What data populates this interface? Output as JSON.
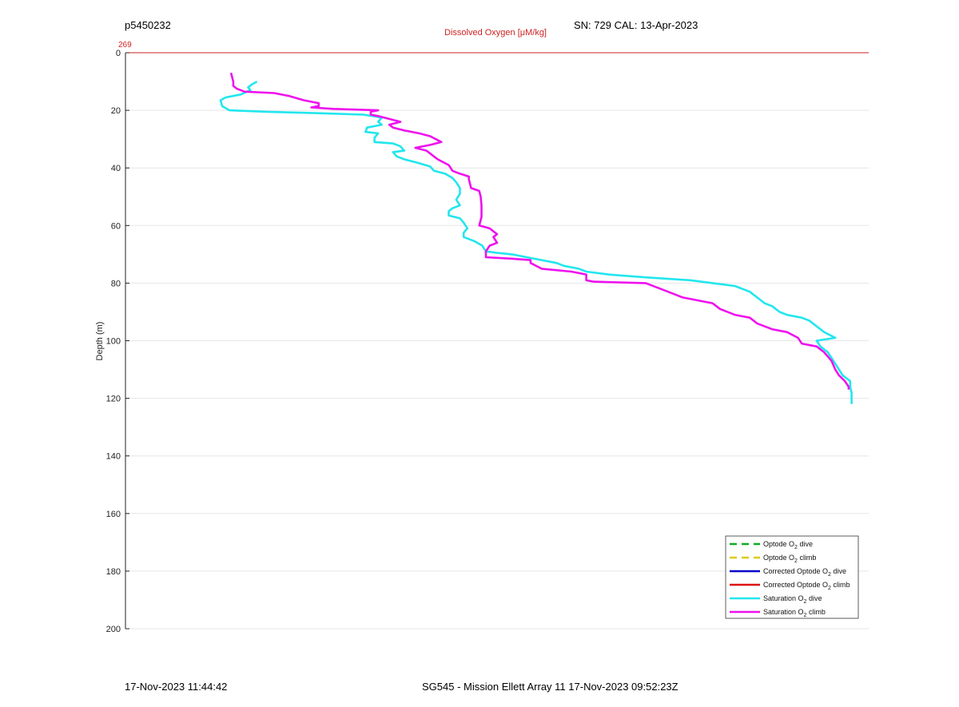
{
  "header": {
    "dive_id": "p5450232",
    "sensor_info": "SN: 729  CAL: 13-Apr-2023"
  },
  "footer": {
    "timestamp": "17-Nov-2023 11:44:42",
    "mission": "SG545 - Mission Ellett Array 11 17-Nov-2023 09:52:23Z"
  },
  "chart_data": {
    "type": "line",
    "title": "",
    "top_axis_label": "Dissolved Oxygen [μM/kg]",
    "top_axis_tick": "269",
    "ylabel": "Depth (m)",
    "ylim": [
      0,
      200
    ],
    "y_reversed": true,
    "yticks": [
      0,
      20,
      40,
      60,
      80,
      100,
      120,
      140,
      160,
      180,
      200
    ],
    "x_tick_value": 269,
    "colors": {
      "top_axis": "#cc2222",
      "grid": "#e6e6e6"
    },
    "legend": {
      "placement": "bottom-right",
      "entries": [
        {
          "label": "Optode O",
          "sub": "2",
          "tail": " dive",
          "color": "#11aa22",
          "dashed": true
        },
        {
          "label": "Optode O",
          "sub": "2",
          "tail": " climb",
          "color": "#ddcc00",
          "dashed": true
        },
        {
          "label": "Corrected Optode O",
          "sub": "2",
          "tail": " dive",
          "color": "#0000cc",
          "dashed": false
        },
        {
          "label": "Corrected Optode O",
          "sub": "2",
          "tail": " climb",
          "color": "#dd1111",
          "dashed": false
        },
        {
          "label": "Saturation O",
          "sub": "2",
          "tail": " dive",
          "color": "#22e6ee",
          "dashed": false
        },
        {
          "label": "Saturation O",
          "sub": "2",
          "tail": " climb",
          "color": "#ee11ee",
          "dashed": false
        }
      ]
    },
    "series": [
      {
        "name": "Saturation O2 dive",
        "color": "#22e6ee",
        "points": [
          [
            0.177,
            10
          ],
          [
            0.17,
            11
          ],
          [
            0.165,
            12
          ],
          [
            0.168,
            13
          ],
          [
            0.155,
            14.5
          ],
          [
            0.135,
            15.5
          ],
          [
            0.128,
            16.5
          ],
          [
            0.13,
            18.5
          ],
          [
            0.14,
            20
          ],
          [
            0.19,
            20.5
          ],
          [
            0.26,
            21
          ],
          [
            0.32,
            21.5
          ],
          [
            0.345,
            22.5
          ],
          [
            0.34,
            24
          ],
          [
            0.345,
            25
          ],
          [
            0.325,
            26
          ],
          [
            0.323,
            27.5
          ],
          [
            0.34,
            28
          ],
          [
            0.335,
            29.5
          ],
          [
            0.335,
            31
          ],
          [
            0.36,
            31.5
          ],
          [
            0.37,
            32.5
          ],
          [
            0.375,
            34
          ],
          [
            0.36,
            34.5
          ],
          [
            0.365,
            36
          ],
          [
            0.375,
            37
          ],
          [
            0.39,
            38
          ],
          [
            0.41,
            39.5
          ],
          [
            0.415,
            41
          ],
          [
            0.43,
            42
          ],
          [
            0.44,
            43.5
          ],
          [
            0.445,
            45
          ],
          [
            0.45,
            47
          ],
          [
            0.45,
            49
          ],
          [
            0.445,
            51
          ],
          [
            0.45,
            53
          ],
          [
            0.44,
            54
          ],
          [
            0.435,
            55
          ],
          [
            0.435,
            56.5
          ],
          [
            0.45,
            57.5
          ],
          [
            0.455,
            59
          ],
          [
            0.46,
            61
          ],
          [
            0.455,
            62.5
          ],
          [
            0.455,
            64
          ],
          [
            0.47,
            65.5
          ],
          [
            0.48,
            67
          ],
          [
            0.485,
            69
          ],
          [
            0.5,
            69.5
          ],
          [
            0.52,
            70
          ],
          [
            0.54,
            71
          ],
          [
            0.56,
            72
          ],
          [
            0.58,
            73
          ],
          [
            0.59,
            74
          ],
          [
            0.61,
            75
          ],
          [
            0.62,
            76
          ],
          [
            0.65,
            77
          ],
          [
            0.7,
            78
          ],
          [
            0.76,
            79
          ],
          [
            0.79,
            80
          ],
          [
            0.82,
            81
          ],
          [
            0.84,
            83
          ],
          [
            0.85,
            85
          ],
          [
            0.86,
            87
          ],
          [
            0.87,
            88
          ],
          [
            0.88,
            90
          ],
          [
            0.89,
            91
          ],
          [
            0.91,
            92
          ],
          [
            0.92,
            93
          ],
          [
            0.93,
            95
          ],
          [
            0.94,
            97
          ],
          [
            0.955,
            99
          ],
          [
            0.93,
            100
          ],
          [
            0.935,
            102
          ],
          [
            0.945,
            104
          ],
          [
            0.95,
            106
          ],
          [
            0.955,
            108
          ],
          [
            0.96,
            110
          ],
          [
            0.965,
            112
          ],
          [
            0.975,
            114
          ],
          [
            0.975,
            116
          ],
          [
            0.977,
            118
          ],
          [
            0.977,
            120
          ],
          [
            0.977,
            122
          ]
        ]
      },
      {
        "name": "Saturation O2 climb",
        "color": "#ee11ee",
        "points": [
          [
            0.973,
            117
          ],
          [
            0.973,
            116
          ],
          [
            0.968,
            114
          ],
          [
            0.96,
            112
          ],
          [
            0.955,
            110
          ],
          [
            0.95,
            107
          ],
          [
            0.94,
            104
          ],
          [
            0.93,
            102
          ],
          [
            0.91,
            101
          ],
          [
            0.905,
            99
          ],
          [
            0.89,
            97
          ],
          [
            0.87,
            96
          ],
          [
            0.85,
            94
          ],
          [
            0.84,
            92
          ],
          [
            0.82,
            91
          ],
          [
            0.8,
            89
          ],
          [
            0.79,
            87
          ],
          [
            0.77,
            86
          ],
          [
            0.75,
            85
          ],
          [
            0.73,
            83
          ],
          [
            0.72,
            82
          ],
          [
            0.7,
            80
          ],
          [
            0.63,
            79.5
          ],
          [
            0.62,
            79
          ],
          [
            0.62,
            77
          ],
          [
            0.6,
            76
          ],
          [
            0.56,
            75
          ],
          [
            0.545,
            73
          ],
          [
            0.545,
            72
          ],
          [
            0.52,
            71.5
          ],
          [
            0.485,
            71
          ],
          [
            0.485,
            69
          ],
          [
            0.49,
            67
          ],
          [
            0.5,
            66
          ],
          [
            0.495,
            64
          ],
          [
            0.5,
            63
          ],
          [
            0.49,
            61
          ],
          [
            0.476,
            60
          ],
          [
            0.479,
            57
          ],
          [
            0.479,
            53
          ],
          [
            0.478,
            50
          ],
          [
            0.476,
            48
          ],
          [
            0.465,
            47
          ],
          [
            0.462,
            44
          ],
          [
            0.462,
            43
          ],
          [
            0.45,
            42
          ],
          [
            0.44,
            41
          ],
          [
            0.435,
            39
          ],
          [
            0.42,
            37
          ],
          [
            0.41,
            35
          ],
          [
            0.405,
            34
          ],
          [
            0.39,
            33
          ],
          [
            0.41,
            32
          ],
          [
            0.425,
            31
          ],
          [
            0.41,
            29
          ],
          [
            0.395,
            28
          ],
          [
            0.375,
            27
          ],
          [
            0.36,
            26
          ],
          [
            0.355,
            25
          ],
          [
            0.37,
            24
          ],
          [
            0.355,
            23
          ],
          [
            0.34,
            22
          ],
          [
            0.33,
            21.5
          ],
          [
            0.33,
            20.5
          ],
          [
            0.34,
            20
          ],
          [
            0.28,
            19.5
          ],
          [
            0.25,
            19
          ],
          [
            0.26,
            18.5
          ],
          [
            0.26,
            17.5
          ],
          [
            0.24,
            16.5
          ],
          [
            0.22,
            15
          ],
          [
            0.2,
            14
          ],
          [
            0.16,
            13.5
          ],
          [
            0.15,
            12.5
          ],
          [
            0.145,
            11.5
          ],
          [
            0.145,
            10
          ],
          [
            0.143,
            8
          ],
          [
            0.142,
            7
          ]
        ]
      }
    ]
  }
}
